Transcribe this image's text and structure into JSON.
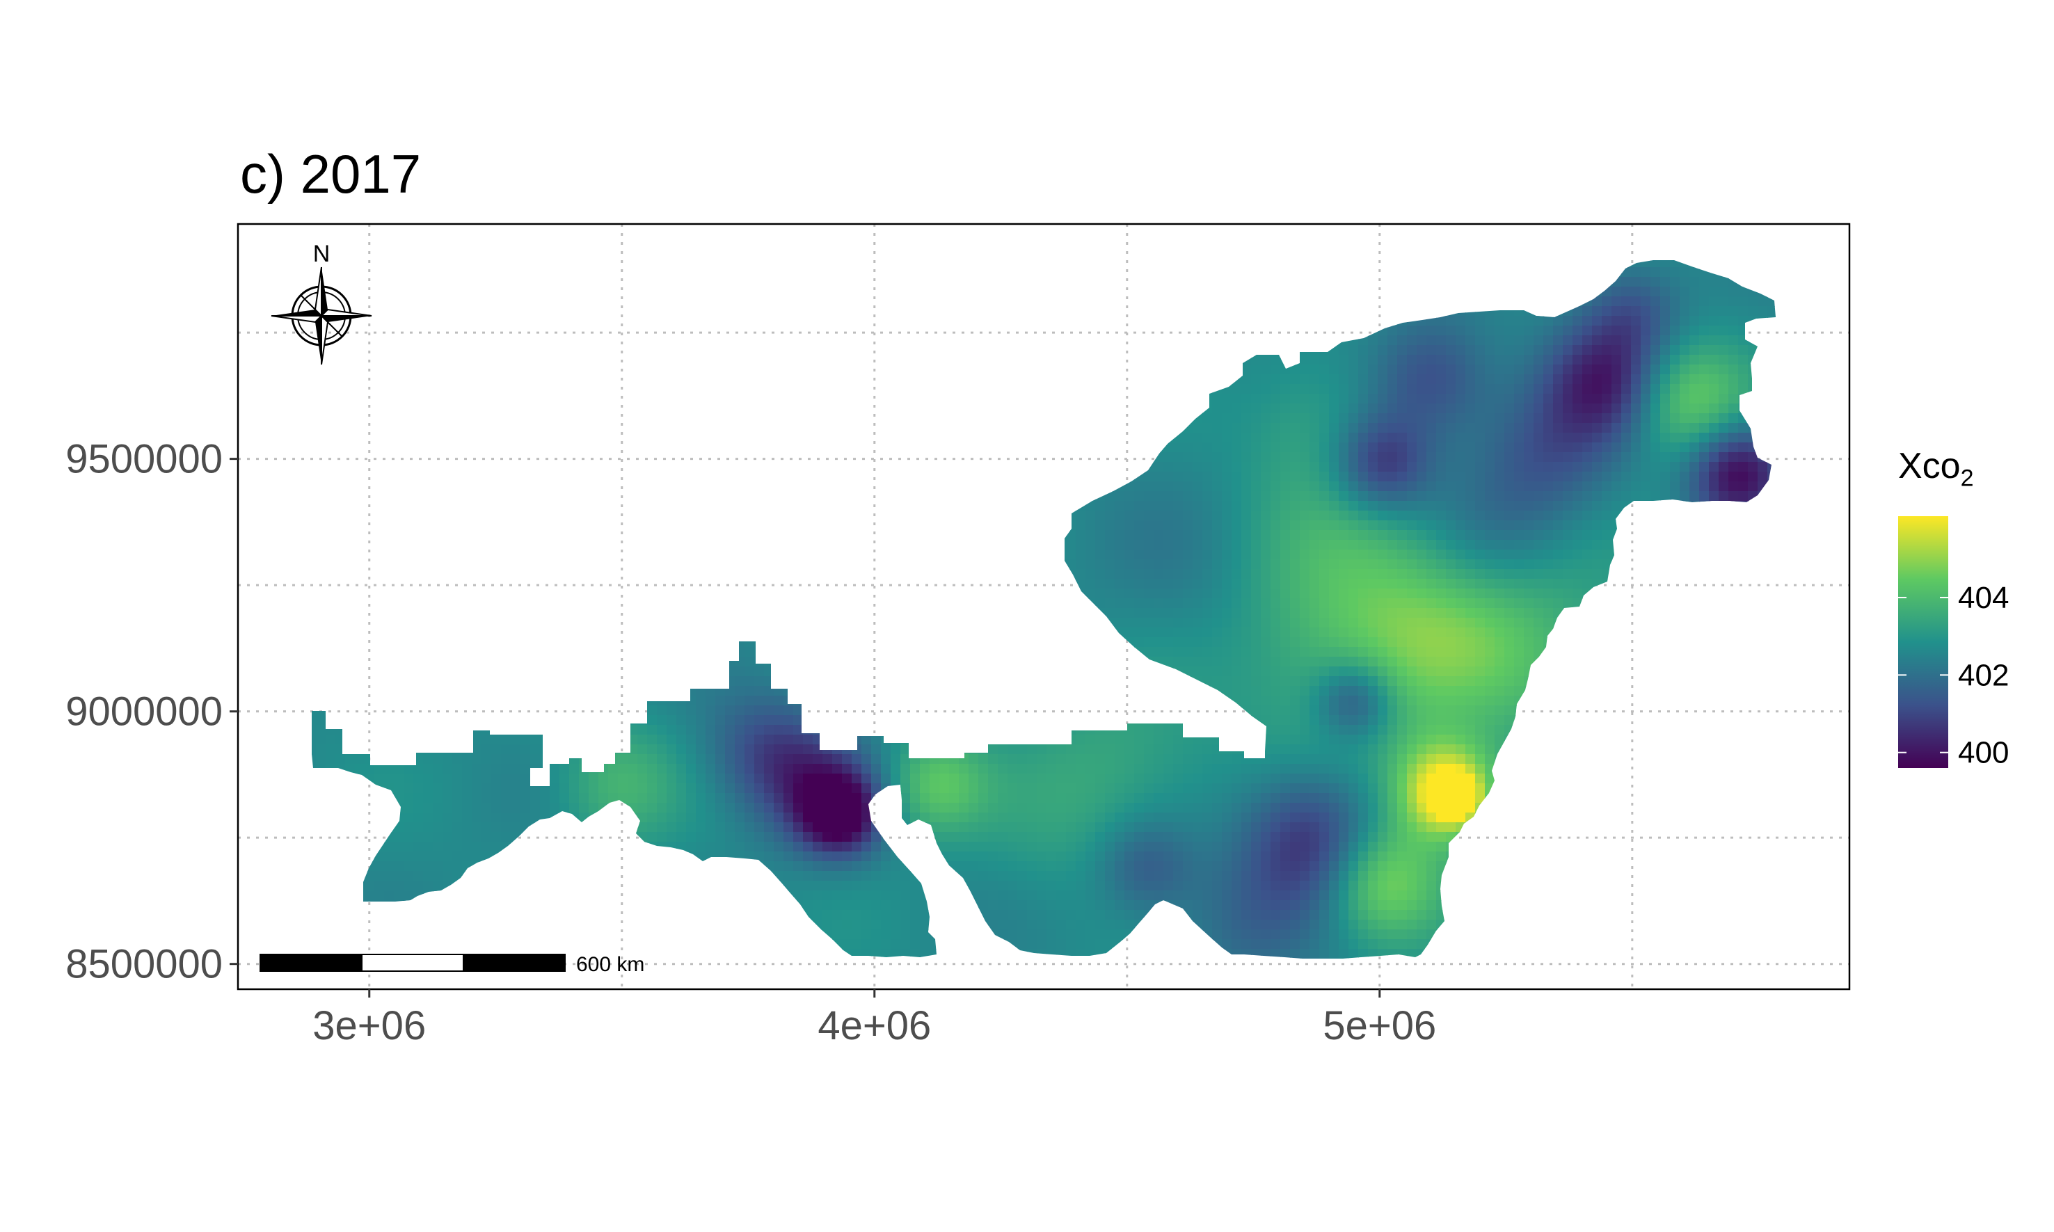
{
  "title": "c) 2017",
  "legend": {
    "title_main": "Xco",
    "title_sub": "2",
    "ticks": [
      "404",
      "402",
      "400"
    ],
    "tick_values": [
      404,
      402,
      400
    ],
    "range": [
      399.6,
      406.1
    ],
    "colors": [
      "#440154",
      "#3b528b",
      "#21918c",
      "#5ec962",
      "#fde725"
    ]
  },
  "axes": {
    "x_ticks": [
      "3e+06",
      "4e+06",
      "5e+06"
    ],
    "x_tick_values": [
      3000000,
      4000000,
      5000000
    ],
    "y_ticks": [
      "9500000",
      "9000000",
      "8500000"
    ],
    "y_tick_values": [
      9500000,
      9000000,
      8500000
    ],
    "xlim": [
      2740000,
      5930000
    ],
    "ylim": [
      8450000,
      9965000
    ]
  },
  "north_arrow": {
    "label": "N"
  },
  "scale_bar": {
    "label": "600 km"
  }
}
